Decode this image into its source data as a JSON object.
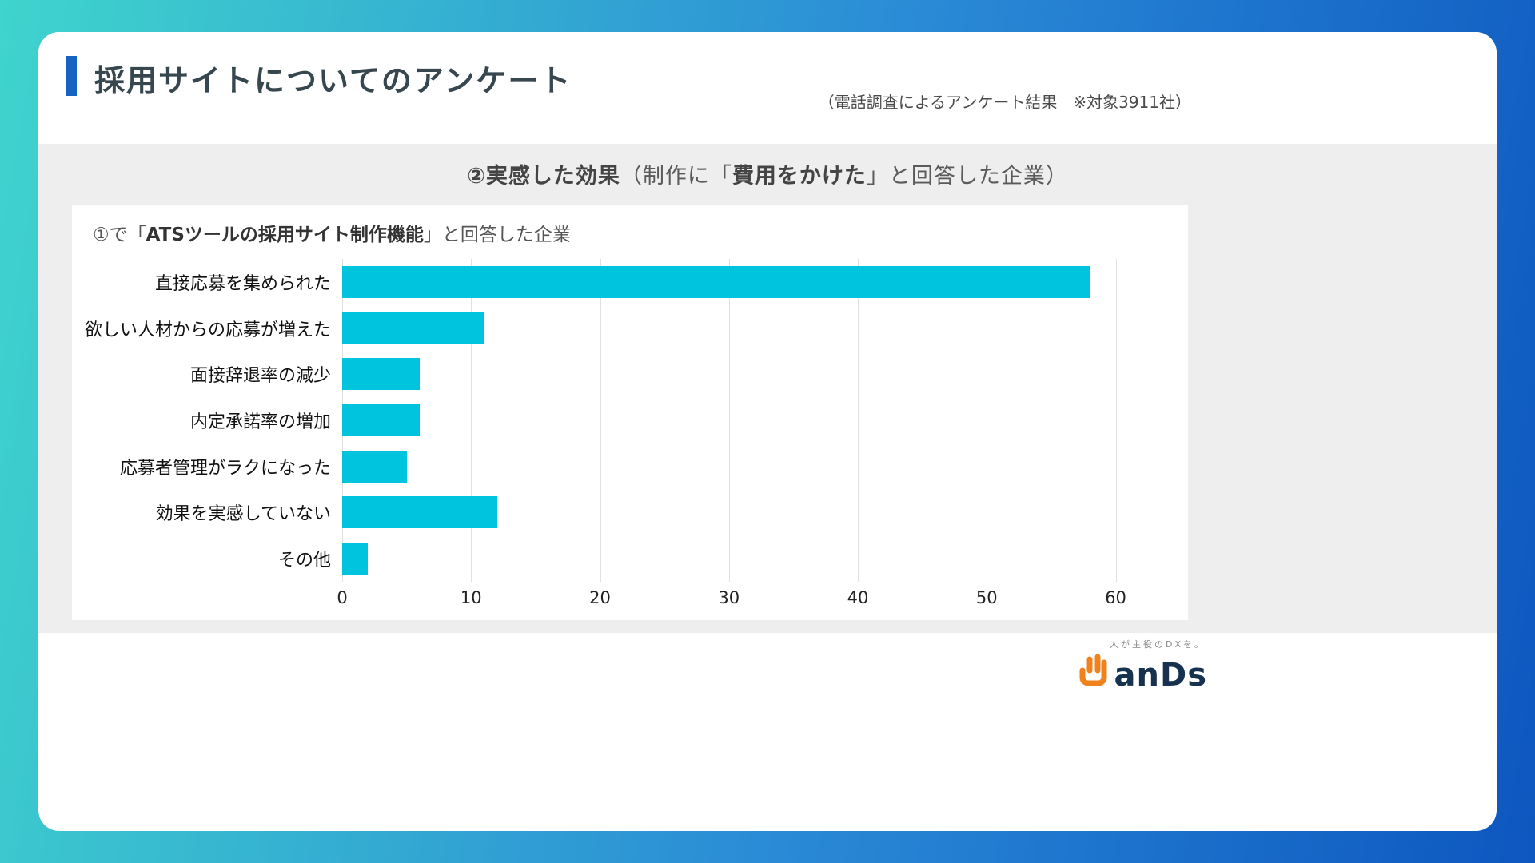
{
  "header": {
    "title": "採用サイトについてのアンケート",
    "note": "（電話調査によるアンケート結果　※対象3911社）"
  },
  "section": {
    "title_bold1": "②実感した効果",
    "title_normal1": "（制作に「",
    "title_bold2": "費用をかけた",
    "title_normal2": "」と回答した企業）"
  },
  "chart_data": {
    "type": "bar",
    "orientation": "horizontal",
    "title_parts": {
      "normal1": "①で「",
      "bold": "ATSツールの採用サイト制作機能",
      "normal2": "」と回答した企業"
    },
    "categories": [
      "直接応募を集められた",
      "欲しい人材からの応募が増えた",
      "面接辞退率の減少",
      "内定承諾率の増加",
      "応募者管理がラクになった",
      "効果を実感していない",
      "その他"
    ],
    "values": [
      58,
      11,
      6,
      6,
      5,
      12,
      2
    ],
    "xlim": [
      0,
      60
    ],
    "xticks": [
      0,
      10,
      20,
      30,
      40,
      50,
      60
    ],
    "grid": true,
    "legend": "none",
    "bar_color": "#00c4dd"
  },
  "footer": {
    "tagline": "人が主役のDXを。",
    "logo_text": "anDs"
  },
  "colors": {
    "accent_blue": "#1565c0",
    "bar_cyan": "#00c4dd",
    "band_gray": "#eeeeee",
    "bg_gradient_start": "#3fd4cd",
    "bg_gradient_end": "#0d57c0",
    "logo_orange": "#f0821e",
    "logo_navy": "#16324e"
  }
}
